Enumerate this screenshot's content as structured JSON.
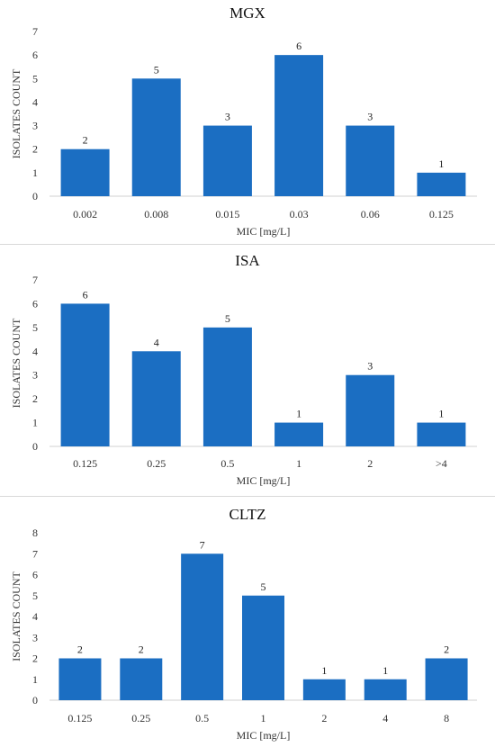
{
  "chart_data": [
    {
      "type": "bar",
      "title": "MGX",
      "categories": [
        "0.002",
        "0.008",
        "0.015",
        "0.03",
        "0.06",
        "0.125"
      ],
      "values": [
        2,
        5,
        3,
        6,
        3,
        1
      ],
      "xlabel": "MIC [mg/L]",
      "ylabel": "ISOLATES COUNT",
      "ylim": [
        0,
        7
      ],
      "yticks": [
        "0",
        "1",
        "2",
        "3",
        "4",
        "5",
        "6",
        "7"
      ],
      "grid": false,
      "color": "#1b6ec2"
    },
    {
      "type": "bar",
      "title": "ISA",
      "categories": [
        "0.125",
        "0.25",
        "0.5",
        "1",
        "2",
        ">4"
      ],
      "values": [
        6,
        4,
        5,
        1,
        3,
        1
      ],
      "xlabel": "MIC [mg/L]",
      "ylabel": "ISOLATES COUNT",
      "ylim": [
        0,
        7
      ],
      "yticks": [
        "0",
        "1",
        "2",
        "3",
        "4",
        "5",
        "6",
        "7"
      ],
      "grid": false,
      "color": "#1b6ec2"
    },
    {
      "type": "bar",
      "title": "CLTZ",
      "categories": [
        "0.125",
        "0.25",
        "0.5",
        "1",
        "2",
        "4",
        "8"
      ],
      "values": [
        2,
        2,
        7,
        5,
        1,
        1,
        2
      ],
      "xlabel": "MIC [mg/L]",
      "ylabel": "ISOLATES COUNT",
      "ylim": [
        0,
        8
      ],
      "yticks": [
        "0",
        "1",
        "2",
        "3",
        "4",
        "5",
        "6",
        "7",
        "8"
      ],
      "grid": false,
      "color": "#1b6ec2"
    }
  ]
}
